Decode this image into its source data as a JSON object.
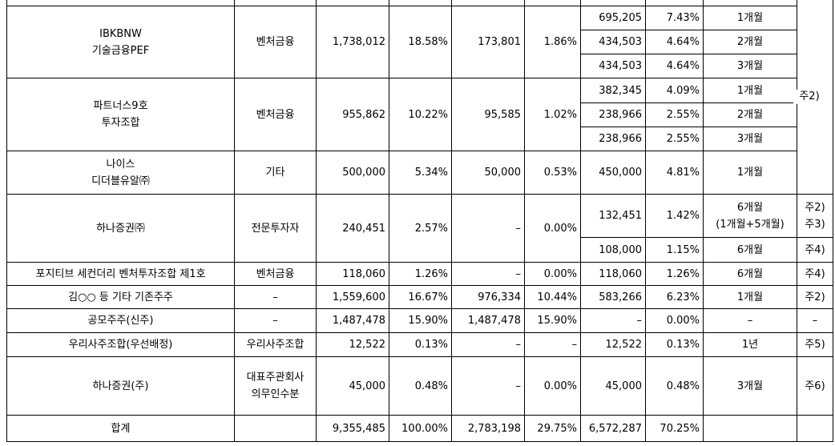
{
  "rows": {
    "ibk": {
      "name_line1": "IBKBNW",
      "name_line2": "기술금융PEF",
      "type": "벤처금융",
      "shares": "1,738,012",
      "ratio": "18.58%",
      "listed_shares": "173,801",
      "listed_ratio": "1.86%",
      "sub": [
        {
          "shares": "695,205",
          "ratio": "7.43%",
          "period": "1개월"
        },
        {
          "shares": "434,503",
          "ratio": "4.64%",
          "period": "2개월"
        },
        {
          "shares": "434,503",
          "ratio": "4.64%",
          "period": "3개월"
        }
      ]
    },
    "partners": {
      "name_line1": "파트너스9호",
      "name_line2": "투자조합",
      "type": "벤처금융",
      "shares": "955,862",
      "ratio": "10.22%",
      "listed_shares": "95,585",
      "listed_ratio": "1.02%",
      "sub": [
        {
          "shares": "382,345",
          "ratio": "4.09%",
          "period": "1개월"
        },
        {
          "shares": "238,966",
          "ratio": "2.55%",
          "period": "2개월"
        },
        {
          "shares": "238,966",
          "ratio": "2.55%",
          "period": "3개월"
        }
      ],
      "note": "주2)"
    },
    "nice": {
      "name_line1": "나이스",
      "name_line2": "디더블유알㈜",
      "type": "기타",
      "shares": "500,000",
      "ratio": "5.34%",
      "listed_shares": "50,000",
      "listed_ratio": "0.53%",
      "lock_shares": "450,000",
      "lock_ratio": "4.81%",
      "period": "1개월"
    },
    "hana1": {
      "name": "하나증권㈜",
      "type": "전문투자자",
      "shares": "240,451",
      "ratio": "2.57%",
      "listed_shares": "–",
      "listed_ratio": "0.00%",
      "sub": [
        {
          "shares": "132,451",
          "ratio": "1.42%",
          "period_line1": "6개월",
          "period_line2": "(1개월+5개월)",
          "note_line1": "주2)",
          "note_line2": "주3)"
        },
        {
          "shares": "108,000",
          "ratio": "1.15%",
          "period": "6개월",
          "note": "주4)"
        }
      ]
    },
    "positive": {
      "name": "포지티브 세컨더리 벤처투자조합 제1호",
      "type": "벤처금융",
      "shares": "118,060",
      "ratio": "1.26%",
      "listed_shares": "–",
      "listed_ratio": "0.00%",
      "lock_shares": "118,060",
      "lock_ratio": "1.26%",
      "period": "6개월",
      "note": "주4)"
    },
    "kim": {
      "name": "김○○ 등 기타 기존주주",
      "type": "–",
      "shares": "1,559,600",
      "ratio": "16.67%",
      "listed_shares": "976,334",
      "listed_ratio": "10.44%",
      "lock_shares": "583,266",
      "lock_ratio": "6.23%",
      "period": "1개월",
      "note": "주2)"
    },
    "public": {
      "name": "공모주주(신주)",
      "type": "–",
      "shares": "1,487,478",
      "ratio": "15.90%",
      "listed_shares": "1,487,478",
      "listed_ratio": "15.90%",
      "lock_shares": "–",
      "lock_ratio": "0.00%",
      "period": "–",
      "note": "–"
    },
    "esop": {
      "name": "우리사주조합(우선배정)",
      "type": "우리사주조합",
      "shares": "12,522",
      "ratio": "0.13%",
      "listed_shares": "–",
      "listed_ratio": "–",
      "lock_shares": "12,522",
      "lock_ratio": "0.13%",
      "period": "1년",
      "note": "주5)"
    },
    "hana2": {
      "name": "하나증권(주)",
      "type_line1": "대표주관회사",
      "type_line2": "의무인수분",
      "shares": "45,000",
      "ratio": "0.48%",
      "listed_shares": "–",
      "listed_ratio": "0.00%",
      "lock_shares": "45,000",
      "lock_ratio": "0.48%",
      "period": "3개월",
      "note": "주6)"
    },
    "total": {
      "name": "합계",
      "shares": "9,355,485",
      "ratio": "100.00%",
      "listed_shares": "2,783,198",
      "listed_ratio": "29.75%",
      "lock_shares": "6,572,287",
      "lock_ratio": "70.25%"
    }
  }
}
